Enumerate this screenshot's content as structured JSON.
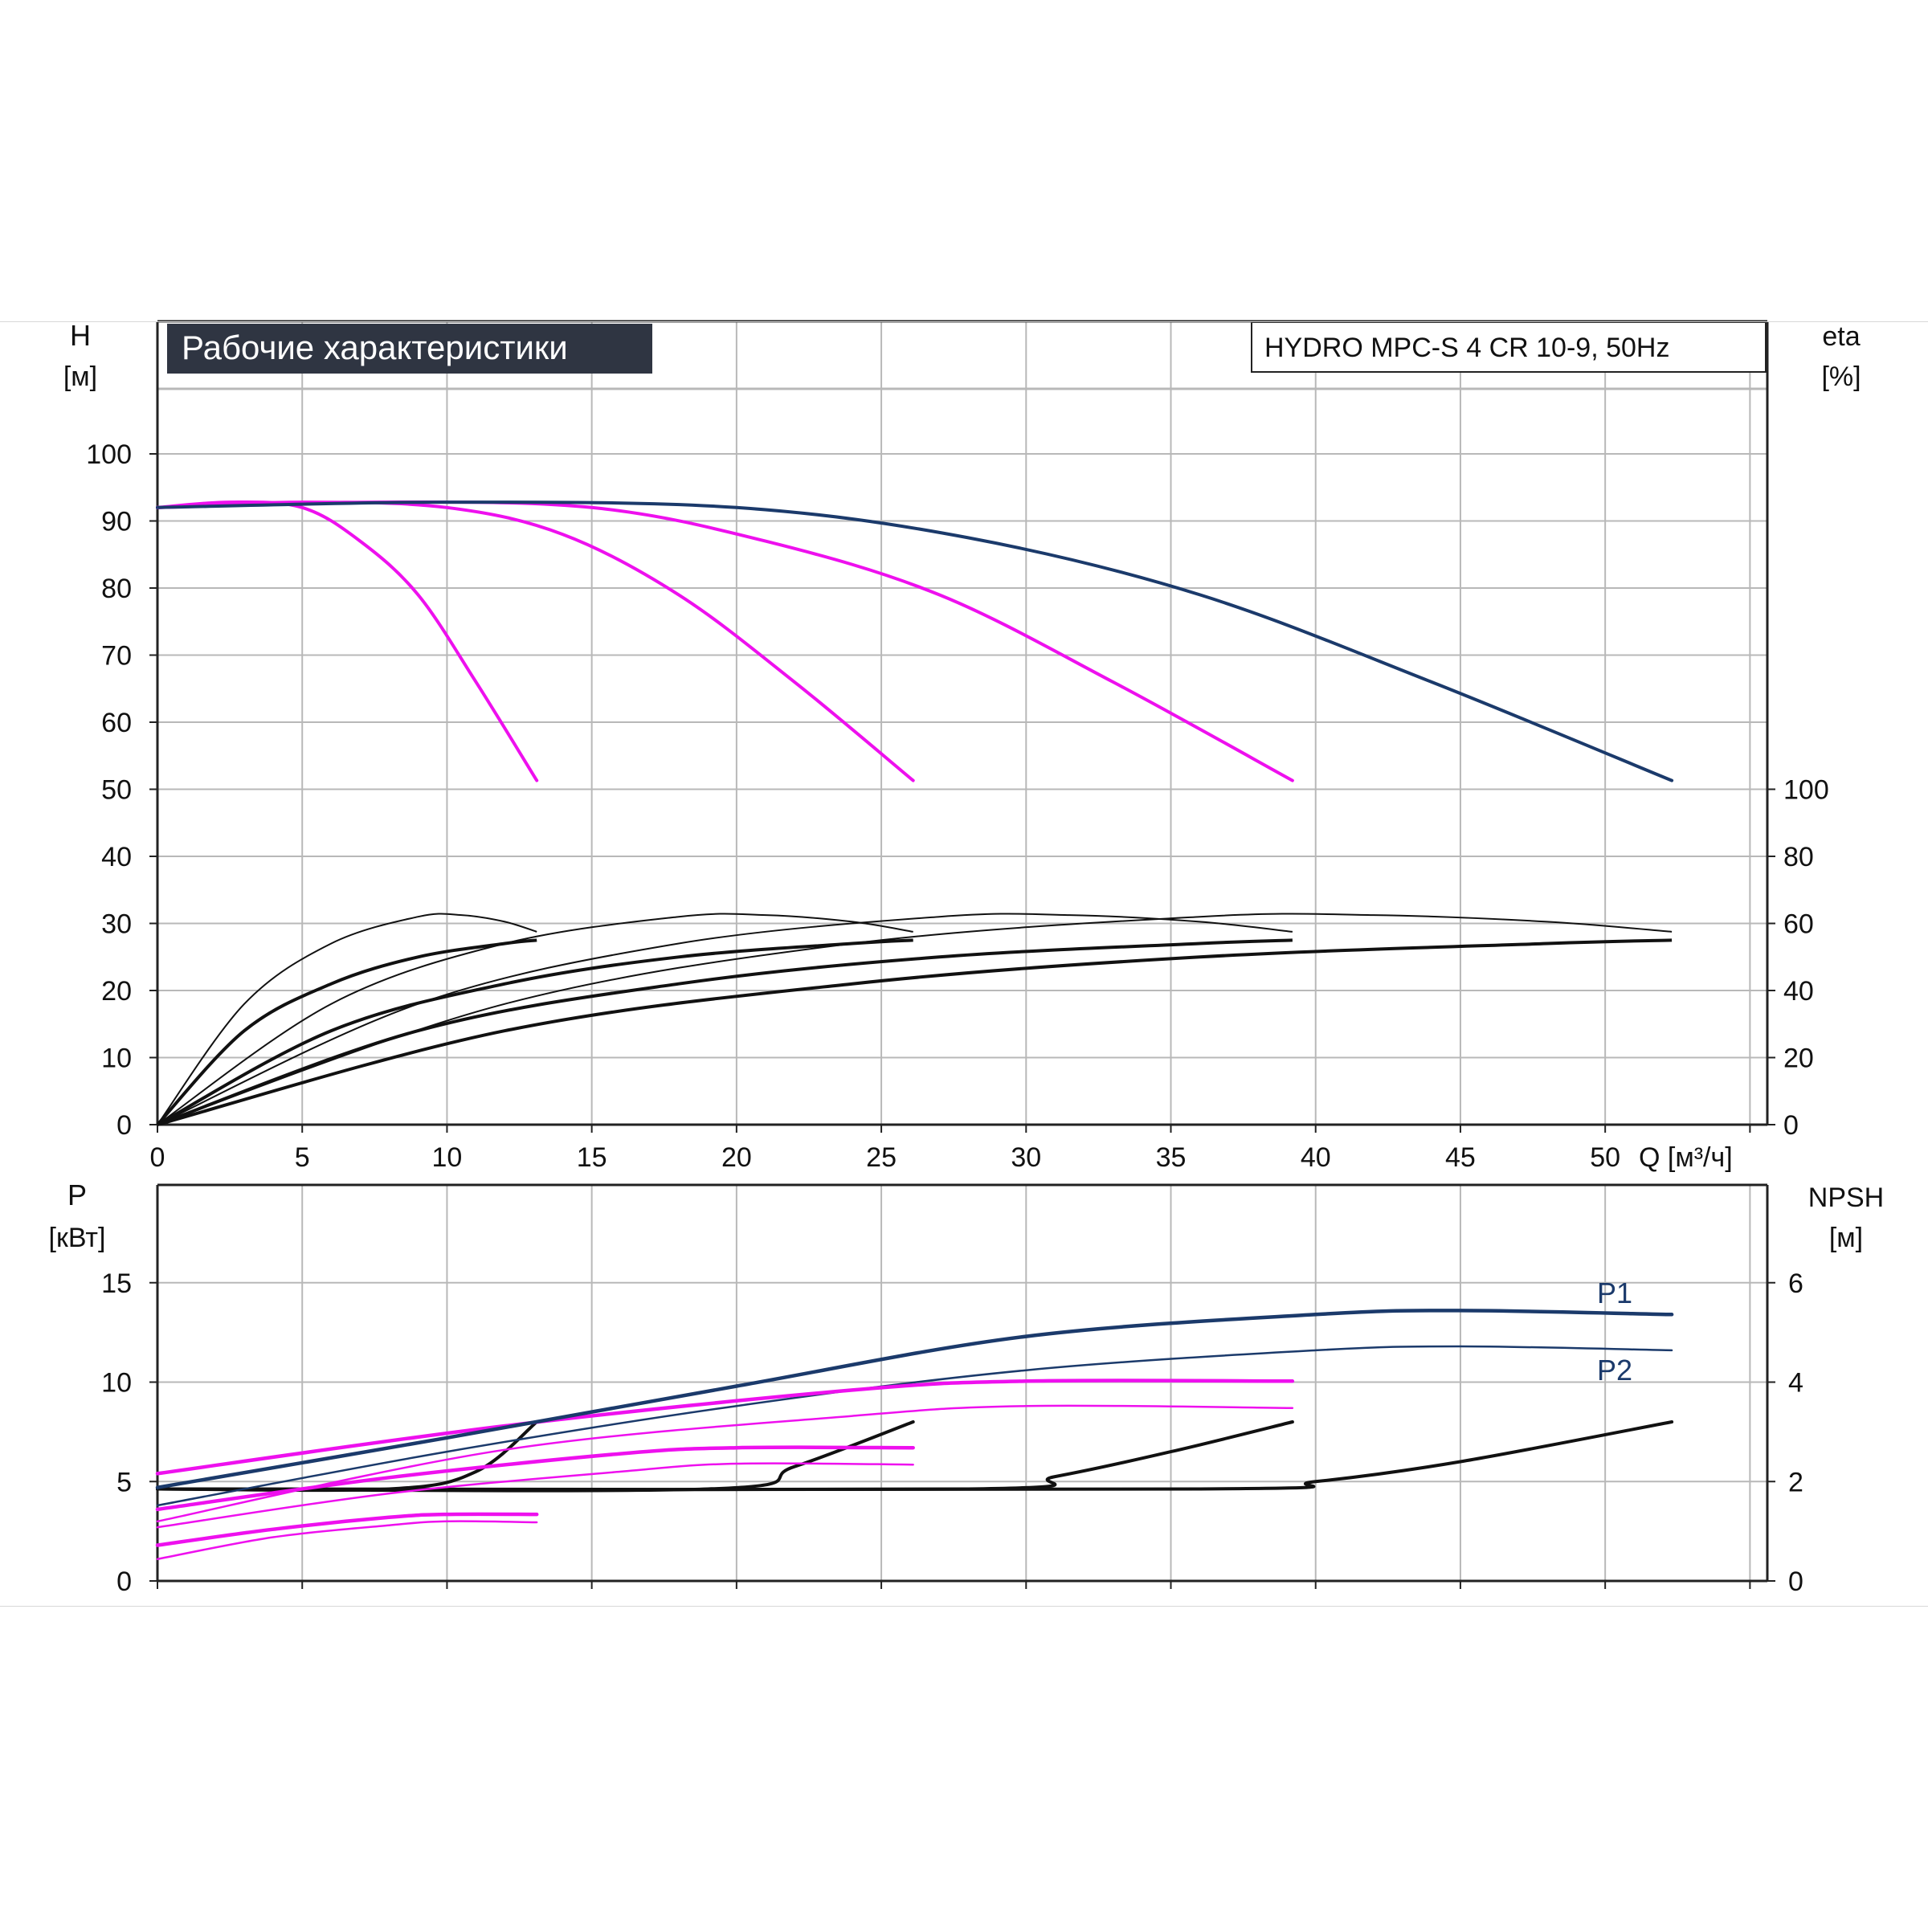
{
  "colors": {
    "grid": "#b8b8b8",
    "axis": "#222222",
    "black": "#111111",
    "navy": "#1b3a6b",
    "magenta": "#ee10ee",
    "title_bg": "#2f3542",
    "title_fg": "#ffffff"
  },
  "chart_data": [
    {
      "id": "performance",
      "type": "line",
      "title": "Рабочие характеристики",
      "model_label": "HYDRO MPC-S 4 CR 10-9, 50Hz",
      "x_label": "Q [м³/ч]",
      "y_label": "H",
      "y_unit": "[м]",
      "y2_label": "eta",
      "y2_unit": "[%]",
      "xlim": [
        0,
        55.6
      ],
      "ylim": [
        0,
        110
      ],
      "y2_range": [
        0,
        100
      ],
      "xticks": [
        0,
        5,
        10,
        15,
        20,
        25,
        30,
        35,
        40,
        45,
        50
      ],
      "yticks": [
        0,
        10,
        20,
        30,
        40,
        50,
        60,
        70,
        80,
        90,
        100
      ],
      "y2ticks": [
        0,
        20,
        40,
        60,
        80,
        100
      ],
      "grid": true,
      "head_curves": [
        {
          "pumps": 1,
          "color": "magenta",
          "points": [
            [
              0,
              92
            ],
            [
              2.5,
              92.8
            ],
            [
              5,
              92
            ],
            [
              7,
              87
            ],
            [
              9,
              79
            ],
            [
              11,
              66
            ],
            [
              13.1,
              51.3
            ]
          ]
        },
        {
          "pumps": 2,
          "color": "magenta",
          "points": [
            [
              0,
              92
            ],
            [
              5,
              92.8
            ],
            [
              10,
              92
            ],
            [
              14,
              88
            ],
            [
              18,
              79
            ],
            [
              22,
              66
            ],
            [
              26.1,
              51.3
            ]
          ]
        },
        {
          "pumps": 3,
          "color": "magenta",
          "points": [
            [
              0,
              92
            ],
            [
              7.5,
              92.8
            ],
            [
              15,
              92
            ],
            [
              21,
              87
            ],
            [
              27,
              79
            ],
            [
              33,
              66
            ],
            [
              39.2,
              51.3
            ]
          ]
        },
        {
          "pumps": 4,
          "color": "navy",
          "points": [
            [
              0,
              92
            ],
            [
              10,
              92.8
            ],
            [
              20,
              92
            ],
            [
              28,
              87.5
            ],
            [
              36,
              79
            ],
            [
              44,
              66
            ],
            [
              52.3,
              51.3
            ]
          ]
        }
      ],
      "eta_curves": [
        {
          "points": [
            [
              0,
              0
            ],
            [
              3,
              36
            ],
            [
              6,
              54
            ],
            [
              9,
              62
            ],
            [
              10.5,
              62.5
            ],
            [
              12,
              60.5
            ],
            [
              13.1,
              57.5
            ]
          ]
        },
        {
          "points": [
            [
              0,
              0
            ],
            [
              3,
              28
            ],
            [
              6,
              42
            ],
            [
              9,
              50
            ],
            [
              12,
              54
            ],
            [
              13.1,
              55
            ]
          ]
        },
        {
          "points": [
            [
              0,
              0
            ],
            [
              6,
              36
            ],
            [
              12,
              54
            ],
            [
              18,
              62
            ],
            [
              21,
              62.5
            ],
            [
              24,
              60.5
            ],
            [
              26.1,
              57.5
            ]
          ]
        },
        {
          "points": [
            [
              0,
              0
            ],
            [
              6,
              28
            ],
            [
              12,
              42
            ],
            [
              18,
              50
            ],
            [
              24,
              54
            ],
            [
              26.1,
              55
            ]
          ]
        },
        {
          "points": [
            [
              0,
              0
            ],
            [
              9,
              36
            ],
            [
              18,
              54
            ],
            [
              27,
              62
            ],
            [
              31.5,
              62.5
            ],
            [
              36,
              60.5
            ],
            [
              39.2,
              57.5
            ]
          ]
        },
        {
          "points": [
            [
              0,
              0
            ],
            [
              9,
              28
            ],
            [
              18,
              42
            ],
            [
              27,
              50
            ],
            [
              36,
              54
            ],
            [
              39.2,
              55
            ]
          ]
        },
        {
          "points": [
            [
              0,
              0
            ],
            [
              12,
              36
            ],
            [
              24,
              54
            ],
            [
              36,
              62
            ],
            [
              42,
              62.5
            ],
            [
              48,
              60.5
            ],
            [
              52.3,
              57.5
            ]
          ]
        },
        {
          "points": [
            [
              0,
              0
            ],
            [
              12,
              28
            ],
            [
              24,
              42
            ],
            [
              36,
              50
            ],
            [
              48,
              54
            ],
            [
              52.3,
              55
            ]
          ]
        }
      ]
    },
    {
      "id": "power",
      "type": "line",
      "x_label": "",
      "y_label": "P",
      "y_unit": "[кВт]",
      "y2_label": "NPSH",
      "y2_unit": "[м]",
      "xlim": [
        0,
        55.6
      ],
      "ylim": [
        0,
        20
      ],
      "y2_range": [
        0,
        8
      ],
      "yticks": [
        0,
        5,
        10,
        15
      ],
      "y2ticks": [
        0,
        2,
        4,
        6
      ],
      "grid": true,
      "series_labels": [
        "P1",
        "P2"
      ],
      "p1_curves": [
        {
          "pumps": 1,
          "color": "magenta",
          "points": [
            [
              0,
              1.8
            ],
            [
              4,
              2.6
            ],
            [
              8,
              3.2
            ],
            [
              10,
              3.35
            ],
            [
              13.1,
              3.35
            ]
          ]
        },
        {
          "pumps": 2,
          "color": "magenta",
          "points": [
            [
              0,
              3.6
            ],
            [
              8,
              5.2
            ],
            [
              16,
              6.4
            ],
            [
              20,
              6.7
            ],
            [
              26.1,
              6.7
            ]
          ]
        },
        {
          "pumps": 3,
          "color": "magenta",
          "points": [
            [
              0,
              5.4
            ],
            [
              12,
              7.8
            ],
            [
              24,
              9.6
            ],
            [
              30,
              10.05
            ],
            [
              39.2,
              10.05
            ]
          ]
        },
        {
          "pumps": 4,
          "color": "navy",
          "points": [
            [
              0,
              4.7
            ],
            [
              10,
              7.2
            ],
            [
              20,
              9.8
            ],
            [
              30,
              12.3
            ],
            [
              40,
              13.4
            ],
            [
              45,
              13.6
            ],
            [
              52.3,
              13.4
            ]
          ]
        }
      ],
      "p2_curves": [
        {
          "pumps": 1,
          "color": "magenta",
          "points": [
            [
              0,
              1.1
            ],
            [
              4,
              2.2
            ],
            [
              8,
              2.8
            ],
            [
              10,
              3.0
            ],
            [
              13.1,
              2.95
            ]
          ]
        },
        {
          "pumps": 2,
          "color": "magenta",
          "points": [
            [
              0,
              2.7
            ],
            [
              8,
              4.4
            ],
            [
              16,
              5.5
            ],
            [
              20,
              5.9
            ],
            [
              26.1,
              5.85
            ]
          ]
        },
        {
          "pumps": 3,
          "color": "magenta",
          "points": [
            [
              0,
              3.0
            ],
            [
              12,
              6.6
            ],
            [
              24,
              8.3
            ],
            [
              30,
              8.8
            ],
            [
              39.2,
              8.7
            ]
          ]
        },
        {
          "pumps": 4,
          "color": "navy",
          "points": [
            [
              0,
              3.8
            ],
            [
              10,
              6.5
            ],
            [
              20,
              8.8
            ],
            [
              30,
              10.6
            ],
            [
              40,
              11.6
            ],
            [
              45,
              11.8
            ],
            [
              52.3,
              11.6
            ]
          ]
        }
      ],
      "npsh_curves": [
        {
          "points": [
            [
              0,
              1.85
            ],
            [
              8,
              1.85
            ],
            [
              11,
              2.2
            ],
            [
              13.1,
              3.2
            ]
          ]
        },
        {
          "points": [
            [
              0,
              1.85
            ],
            [
              19,
              1.85
            ],
            [
              22,
              2.3
            ],
            [
              26.1,
              3.2
            ]
          ]
        },
        {
          "points": [
            [
              0,
              1.85
            ],
            [
              28,
              1.85
            ],
            [
              31,
              2.1
            ],
            [
              35,
              2.6
            ],
            [
              39.2,
              3.2
            ]
          ]
        },
        {
          "points": [
            [
              0,
              1.85
            ],
            [
              36,
              1.85
            ],
            [
              40,
              2.0
            ],
            [
              45,
              2.4
            ],
            [
              52.3,
              3.2
            ]
          ]
        }
      ]
    }
  ]
}
